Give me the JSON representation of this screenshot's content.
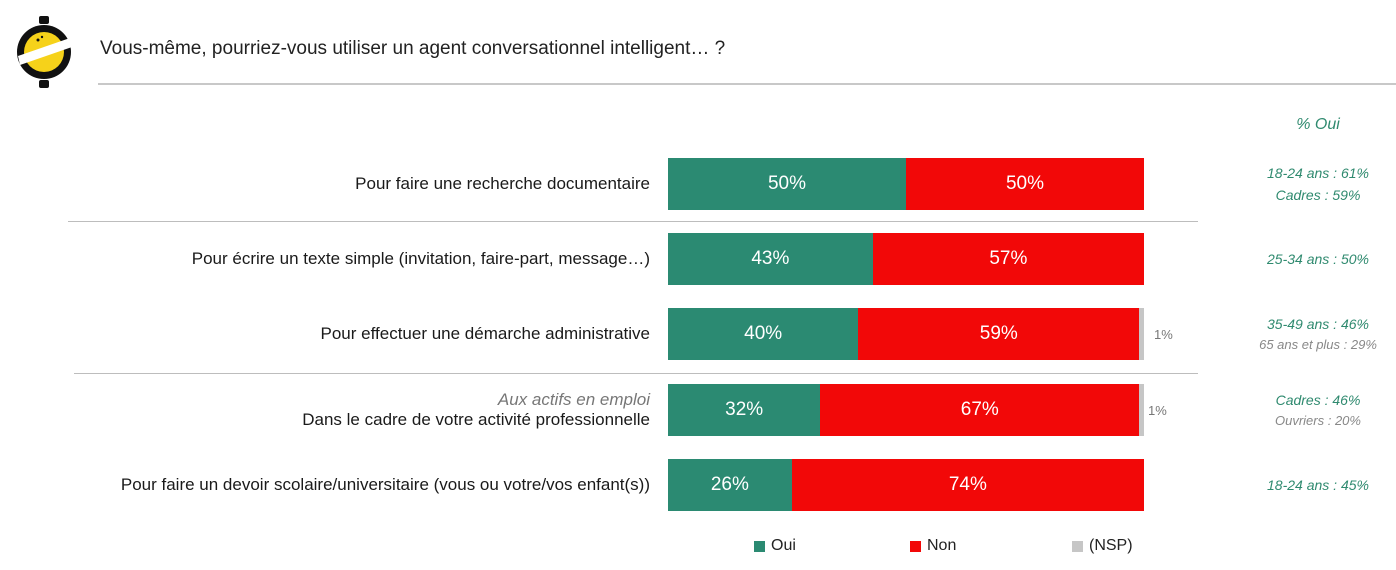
{
  "title": "Vous-même, pourriez-vous utiliser un agent conversationnel intelligent… ?",
  "pct_header": "% Oui",
  "colors": {
    "oui": "#2b8a72",
    "non": "#f20808",
    "nsp": "#c6c6c6",
    "note_green": "#2f8a6f"
  },
  "chart_data": {
    "type": "bar",
    "orientation": "horizontal",
    "stacked": true,
    "percent": true,
    "categories": [
      "Pour faire une recherche documentaire",
      "Pour écrire un texte simple (invitation, faire-part, message…)",
      "Pour effectuer une démarche administrative",
      "Dans le cadre de votre activité professionnelle",
      "Pour faire un devoir scolaire/universitaire (vous ou votre/vos enfant(s))"
    ],
    "category_notes": [
      "",
      "",
      "",
      "Aux actifs en emploi",
      ""
    ],
    "series": [
      {
        "name": "Oui",
        "values": [
          50,
          43,
          40,
          32,
          26
        ],
        "labels": [
          "50%",
          "43%",
          "40%",
          "32%",
          "26%"
        ]
      },
      {
        "name": "Non",
        "values": [
          50,
          57,
          59,
          67,
          74
        ],
        "labels": [
          "50%",
          "57%",
          "59%",
          "67%",
          "74%"
        ]
      },
      {
        "name": "(NSP)",
        "values": [
          0,
          0,
          1,
          1,
          0
        ],
        "labels": [
          "",
          "",
          "1%",
          "1%",
          ""
        ]
      }
    ],
    "legend": [
      "Oui",
      "Non",
      "(NSP)"
    ],
    "legend_position": "bottom",
    "xlim": [
      0,
      100
    ]
  },
  "notes": [
    [
      {
        "text": "18-24 ans : 61%",
        "style": "green"
      },
      {
        "text": "Cadres : 59%",
        "style": "green"
      }
    ],
    [
      {
        "text": "25-34 ans : 50%",
        "style": "green"
      }
    ],
    [
      {
        "text": "35-49 ans : 46%",
        "style": "green"
      },
      {
        "text": "65 ans et plus : 29%",
        "style": "gray"
      }
    ],
    [
      {
        "text": "Cadres : 46%",
        "style": "green"
      },
      {
        "text": "Ouvriers : 20%",
        "style": "gray"
      }
    ],
    [
      {
        "text": "18-24 ans : 45%",
        "style": "green"
      }
    ]
  ]
}
